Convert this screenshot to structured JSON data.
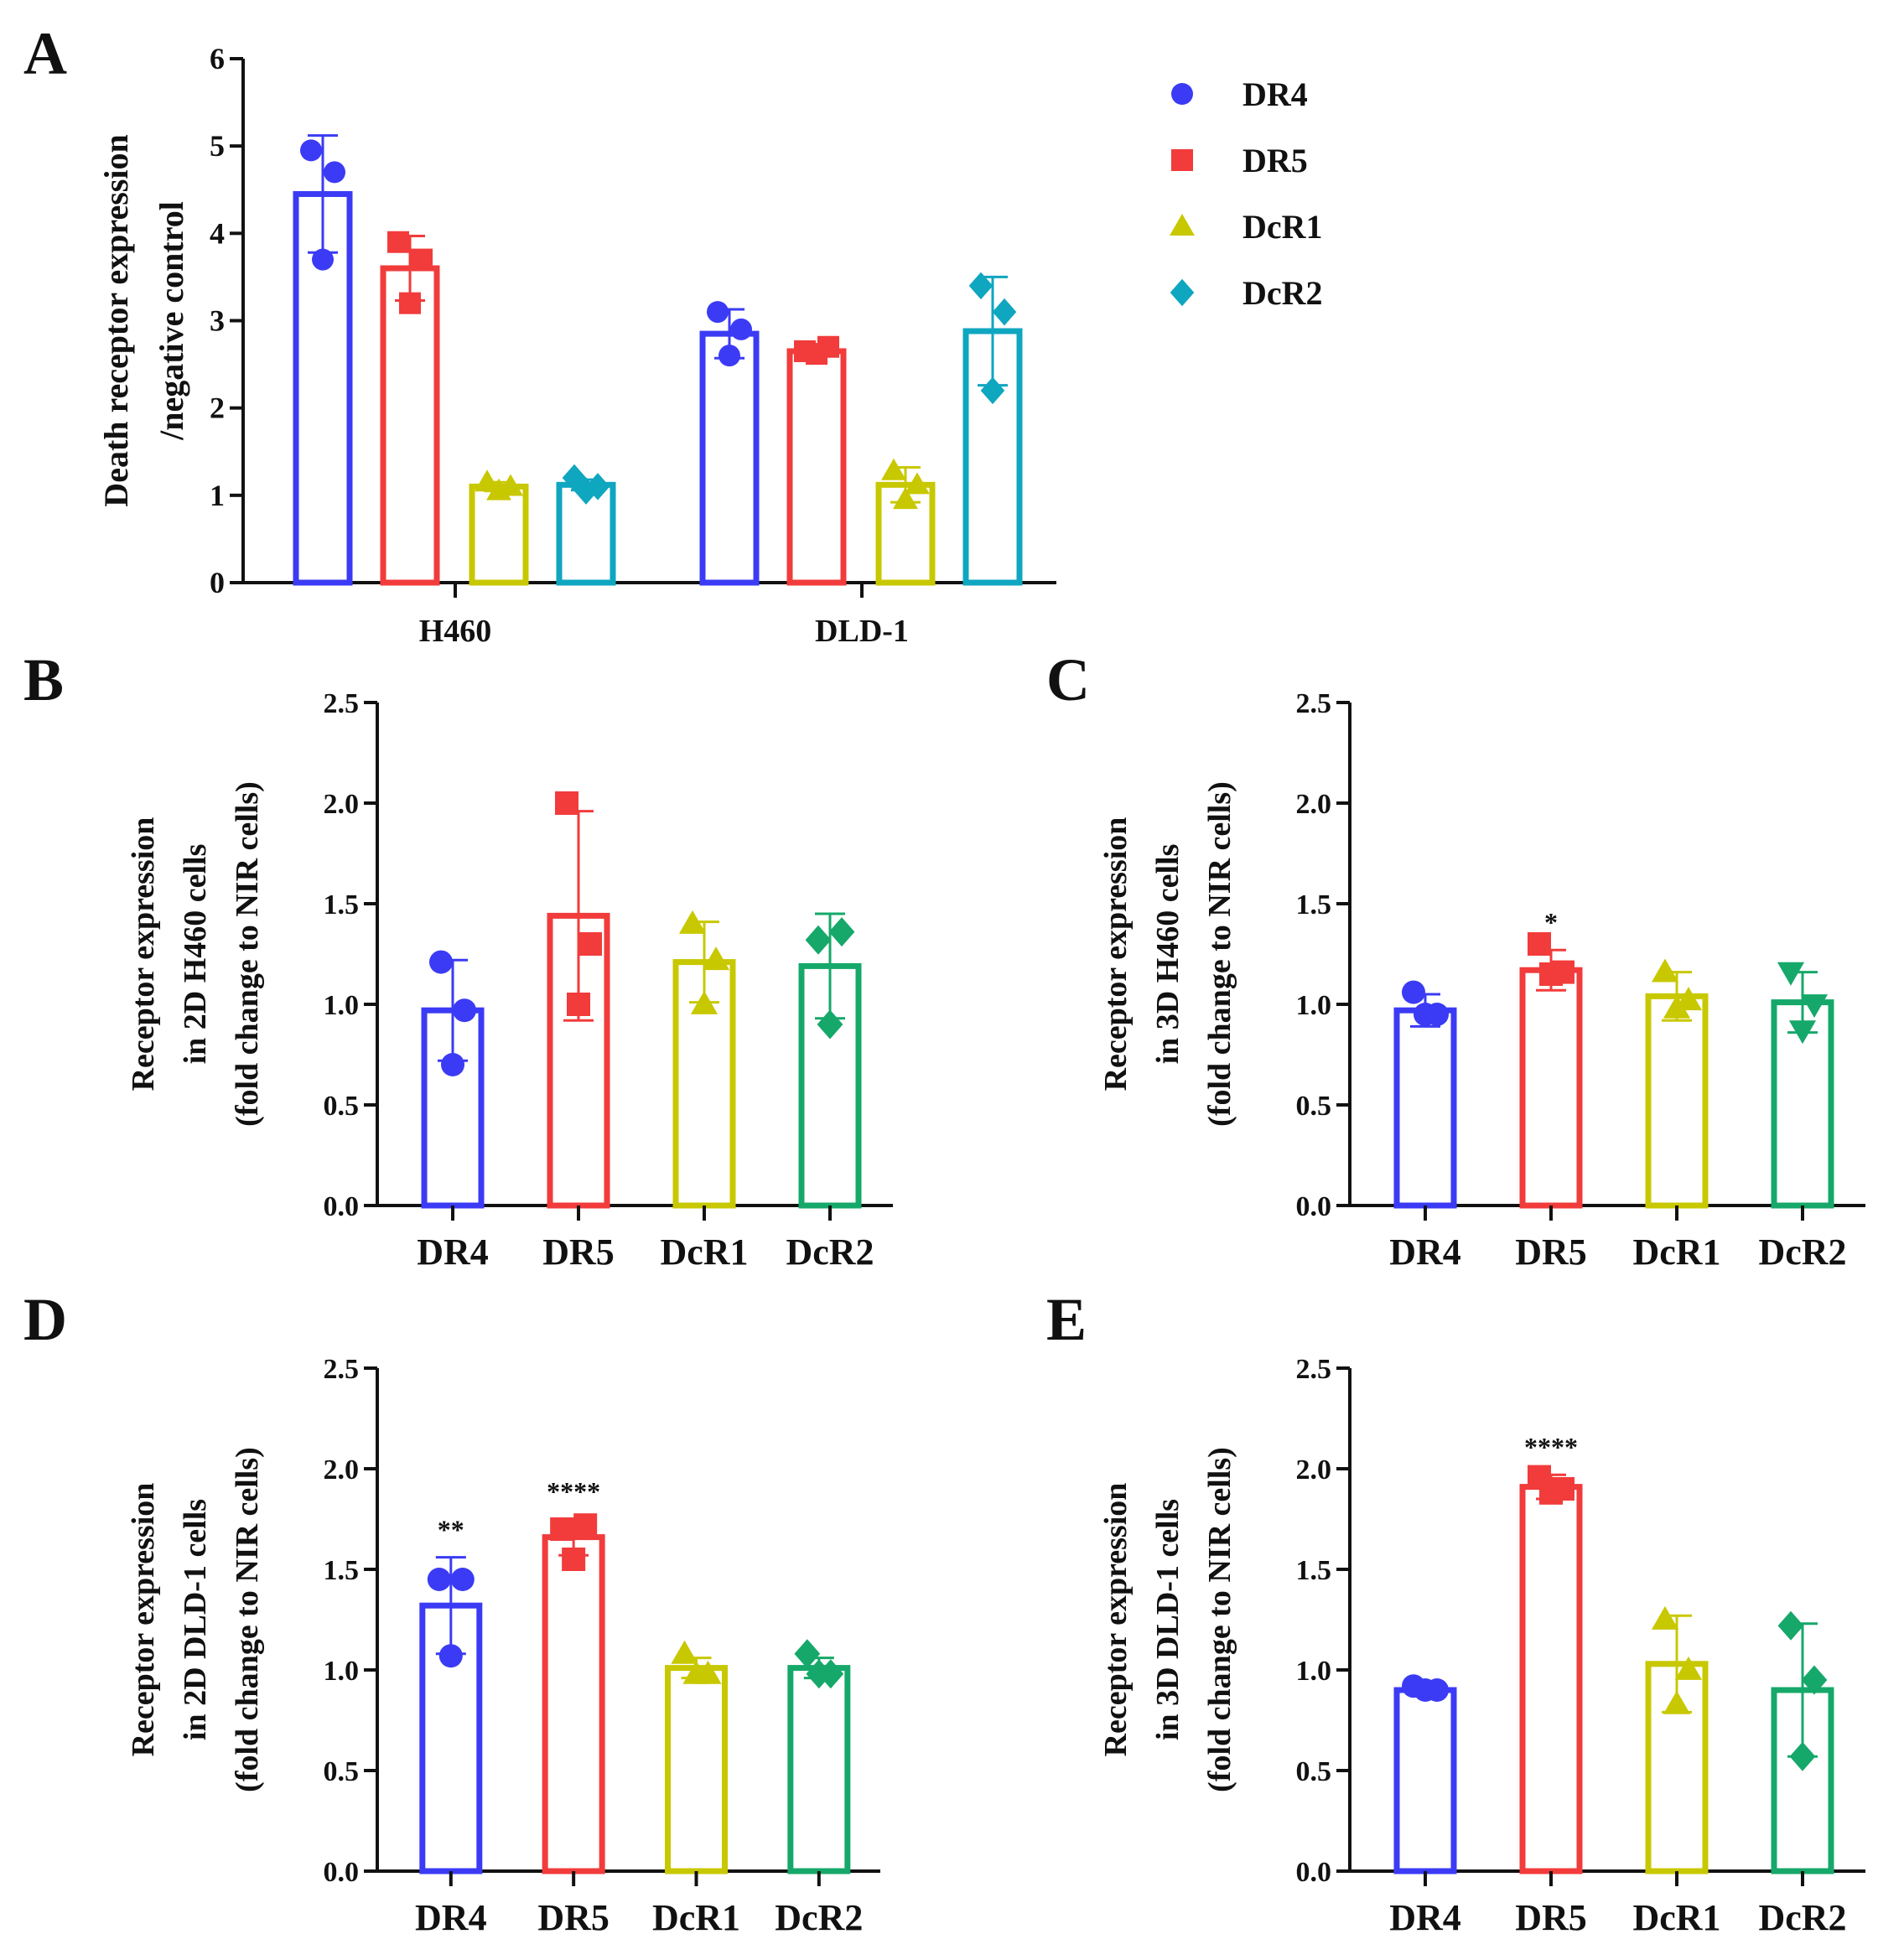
{
  "figure": {
    "colors": {
      "DR4": "#3b3bf5",
      "DR5": "#f23b3b",
      "DcR1": "#c8c800",
      "DcR2_A": "#0fa6c0",
      "DcR2": "#16a86a",
      "axis": "#111111"
    },
    "legend": {
      "items": [
        {
          "label": "DR4",
          "marker": "circle",
          "color": "#3b3bf5"
        },
        {
          "label": "DR5",
          "marker": "square",
          "color": "#f23b3b"
        },
        {
          "label": "DcR1",
          "marker": "triangle",
          "color": "#c8c800"
        },
        {
          "label": "DcR2",
          "marker": "diamond",
          "color": "#0fa6c0"
        }
      ]
    }
  },
  "chart_data": [
    {
      "panel": "A",
      "type": "bar",
      "ylabel_lines": [
        "Death receptor expression",
        "/negative control"
      ],
      "ylim": [
        0,
        6
      ],
      "yticks": [
        "0",
        "1",
        "2",
        "3",
        "4",
        "5",
        "6"
      ],
      "groups": [
        "H460",
        "DLD-1"
      ],
      "series": [
        {
          "name": "DR4",
          "marker": "circle",
          "color": "#3b3bf5",
          "values": [
            4.45,
            2.85
          ],
          "sd": [
            0.67,
            0.28
          ],
          "points": [
            [
              4.95,
              4.7,
              3.7
            ],
            [
              3.1,
              2.9,
              2.6
            ]
          ]
        },
        {
          "name": "DR5",
          "marker": "square",
          "color": "#f23b3b",
          "values": [
            3.6,
            2.65
          ],
          "sd": [
            0.37,
            0.05
          ],
          "points": [
            [
              3.9,
              3.7,
              3.2
            ],
            [
              2.65,
              2.7,
              2.62
            ]
          ]
        },
        {
          "name": "DcR1",
          "marker": "triangle",
          "color": "#c8c800",
          "values": [
            1.1,
            1.12
          ],
          "sd": [
            0.05,
            0.2
          ],
          "points": [
            [
              1.15,
              1.1,
              1.05
            ],
            [
              1.28,
              1.12,
              0.95
            ]
          ]
        },
        {
          "name": "DcR2",
          "marker": "diamond",
          "color": "#0fa6c0",
          "values": [
            1.12,
            2.88
          ],
          "sd": [
            0.06,
            0.62
          ],
          "points": [
            [
              1.2,
              1.1,
              1.05
            ],
            [
              3.4,
              3.1,
              2.2
            ]
          ]
        }
      ]
    },
    {
      "panel": "B",
      "type": "bar",
      "ylabel_lines": [
        "Receptor expression",
        "in 2D H460 cells",
        "(fold change to NIR cells)"
      ],
      "ylim": [
        0,
        2.5
      ],
      "yticks": [
        "0.0",
        "0.5",
        "1.0",
        "1.5",
        "2.0",
        "2.5"
      ],
      "categories": [
        "DR4",
        "DR5",
        "DcR1",
        "DcR2"
      ],
      "values": [
        0.97,
        1.44,
        1.21,
        1.19
      ],
      "sd": [
        0.25,
        0.52,
        0.2,
        0.26
      ],
      "points": [
        [
          1.21,
          0.97,
          0.7
        ],
        [
          2.0,
          1.3,
          1.0
        ],
        [
          1.4,
          1.22,
          1.0
        ],
        [
          1.32,
          1.36,
          0.9
        ]
      ],
      "annotations": [
        "",
        "",
        "",
        ""
      ]
    },
    {
      "panel": "C",
      "type": "bar",
      "ylabel_lines": [
        "Receptor expression",
        "in 3D H460 cells",
        "(fold change to NIR cells)"
      ],
      "ylim": [
        0,
        2.5
      ],
      "yticks": [
        "0.0",
        "0.5",
        "1.0",
        "1.5",
        "2.0",
        "2.5"
      ],
      "categories": [
        "DR4",
        "DR5",
        "DcR1",
        "DcR2"
      ],
      "values": [
        0.97,
        1.17,
        1.04,
        1.01
      ],
      "sd": [
        0.08,
        0.1,
        0.12,
        0.15
      ],
      "points": [
        [
          1.06,
          0.95,
          0.95
        ],
        [
          1.3,
          1.16,
          1.15
        ],
        [
          1.16,
          1.02,
          0.98
        ],
        [
          1.16,
          1.0,
          0.87
        ]
      ],
      "annotations": [
        "",
        "*",
        "",
        ""
      ]
    },
    {
      "panel": "D",
      "type": "bar",
      "ylabel_lines": [
        "Receptor expression",
        "in 2D DLD-1 cells",
        "(fold change to NIR cells)"
      ],
      "ylim": [
        0,
        2.5
      ],
      "yticks": [
        "0.0",
        "0.5",
        "1.0",
        "1.5",
        "2.0",
        "2.5"
      ],
      "categories": [
        "DR4",
        "DR5",
        "DcR1",
        "DcR2"
      ],
      "values": [
        1.32,
        1.66,
        1.01,
        1.01
      ],
      "sd": [
        0.24,
        0.09,
        0.05,
        0.05
      ],
      "points": [
        [
          1.45,
          1.45,
          1.07
        ],
        [
          1.7,
          1.72,
          1.55
        ],
        [
          1.08,
          0.98,
          0.98
        ],
        [
          1.08,
          0.98,
          0.98
        ]
      ],
      "annotations": [
        "**",
        "****",
        "",
        ""
      ]
    },
    {
      "panel": "E",
      "type": "bar",
      "ylabel_lines": [
        "Receptor expression",
        "in 3D DLD-1 cells",
        "(fold change to NIR cells)"
      ],
      "ylim": [
        0,
        2.5
      ],
      "yticks": [
        "0.0",
        "0.5",
        "1.0",
        "1.5",
        "2.0",
        "2.5"
      ],
      "categories": [
        "DR4",
        "DR5",
        "DcR1",
        "DcR2"
      ],
      "values": [
        0.9,
        1.91,
        1.03,
        0.9
      ],
      "sd": [
        0.03,
        0.06,
        0.24,
        0.33
      ],
      "points": [
        [
          0.92,
          0.9,
          0.9
        ],
        [
          1.96,
          1.9,
          1.88
        ],
        [
          1.25,
          1.0,
          0.83
        ],
        [
          1.22,
          0.95,
          0.57
        ]
      ],
      "annotations": [
        "",
        "****",
        "",
        ""
      ]
    }
  ]
}
